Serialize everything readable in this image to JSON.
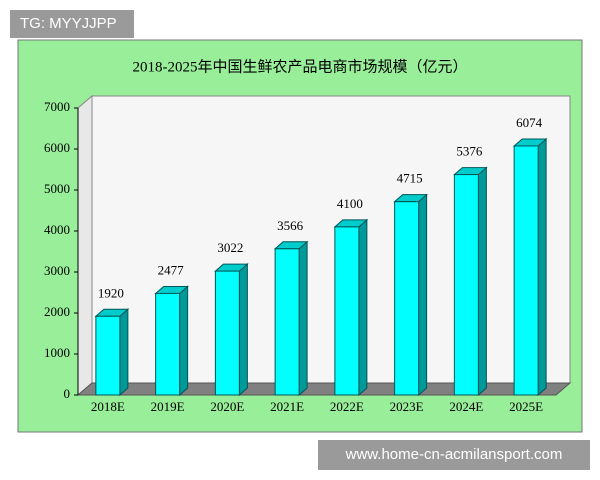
{
  "watermark": "TG: MYYJJPP",
  "footer_url": "www.home-cn-acmilansport.com",
  "chart_data": {
    "type": "bar3d",
    "title": "2018-2025年中国生鲜农产品电商市场规模（亿元）",
    "categories": [
      "2018E",
      "2019E",
      "2020E",
      "2021E",
      "2022E",
      "2023E",
      "2024E",
      "2025E"
    ],
    "values": [
      1920,
      2477,
      3022,
      3566,
      4100,
      4715,
      5376,
      6074
    ],
    "color": "#00ffff",
    "ylim": [
      0,
      7000
    ],
    "yticks": [
      0,
      1000,
      2000,
      3000,
      4000,
      5000,
      6000,
      7000
    ],
    "grid": false
  }
}
